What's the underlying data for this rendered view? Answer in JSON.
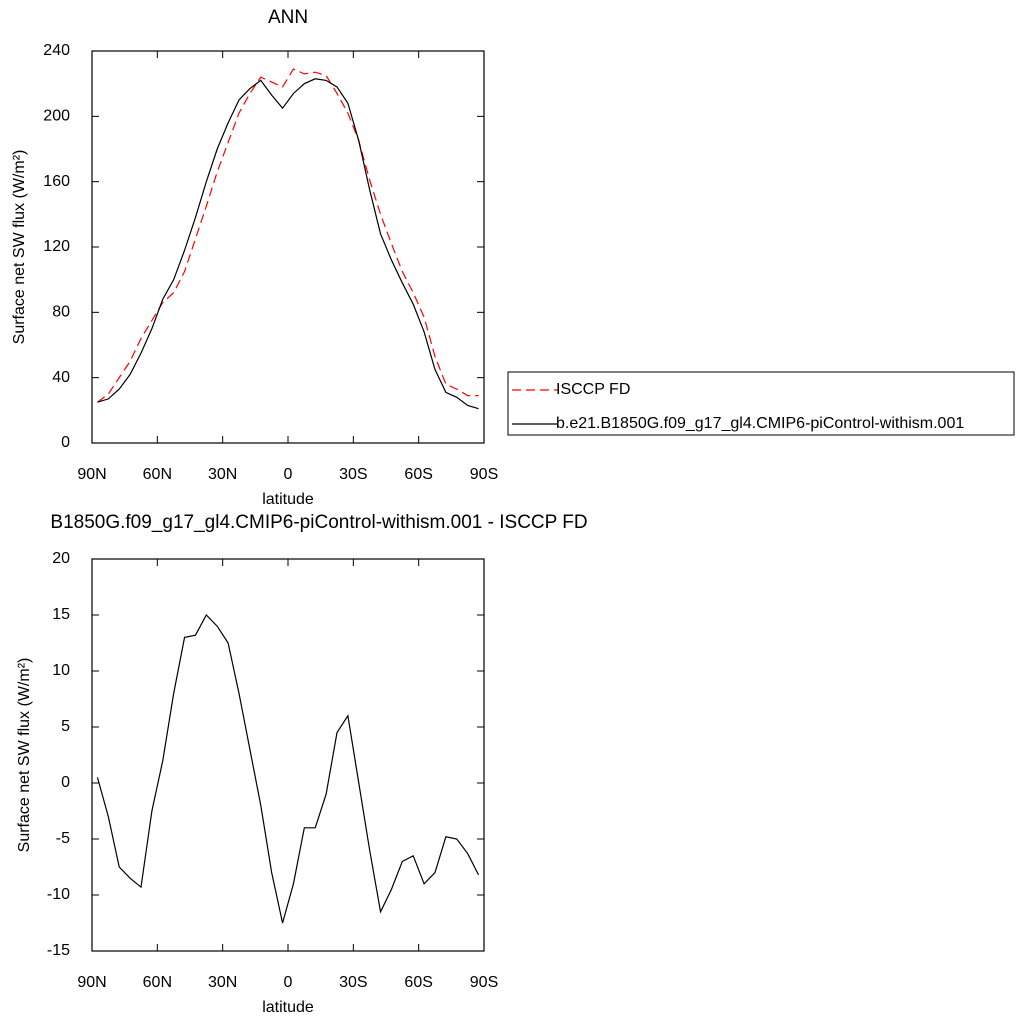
{
  "chart_data": [
    {
      "type": "line",
      "title": "ANN",
      "xlabel": "latitude",
      "ylabel": "Surface net SW flux (W/m²)",
      "x": [
        87.5,
        82.5,
        77.5,
        72.5,
        67.5,
        62.5,
        57.5,
        52.5,
        47.5,
        42.5,
        37.5,
        32.5,
        27.5,
        22.5,
        17.5,
        12.5,
        7.5,
        2.5,
        -2.5,
        -7.5,
        -12.5,
        -17.5,
        -22.5,
        -27.5,
        -32.5,
        -37.5,
        -42.5,
        -47.5,
        -52.5,
        -57.5,
        -62.5,
        -67.5,
        -72.5,
        -77.5,
        -82.5,
        -87.5
      ],
      "series": [
        {
          "name": "ISCCP FD",
          "color": "#ff0000",
          "dashed": true,
          "values": [
            25,
            30,
            40,
            50,
            64,
            75,
            86,
            92,
            105,
            125,
            145,
            166,
            184,
            202,
            214,
            224,
            221,
            218,
            229,
            226,
            227,
            225,
            214,
            202,
            185,
            161,
            140,
            122,
            105,
            92,
            77,
            53,
            36,
            33,
            29,
            29
          ]
        },
        {
          "name": "b.e21.B1850G.f09_g17_gl4.CMIP6-piControl-withism.001",
          "color": "#000000",
          "dashed": false,
          "values": [
            25,
            27,
            33,
            42,
            55,
            70,
            88,
            100,
            118,
            138,
            160,
            180,
            196,
            210,
            217,
            222,
            213,
            205,
            214,
            220,
            223,
            222,
            218,
            208,
            185,
            155,
            128,
            112,
            98,
            85,
            68,
            45,
            31,
            28,
            23,
            21
          ]
        }
      ],
      "xlim": [
        90,
        -90
      ],
      "xticks": [
        {
          "value": 90,
          "label": "90N"
        },
        {
          "value": 60,
          "label": "60N"
        },
        {
          "value": 30,
          "label": "30N"
        },
        0,
        {
          "value": -30,
          "label": "30S"
        },
        {
          "value": -60,
          "label": "60S"
        },
        {
          "value": -90,
          "label": "90S"
        }
      ],
      "ylim": [
        0,
        240
      ],
      "yticks": [
        0,
        40,
        80,
        120,
        160,
        200,
        240
      ],
      "legend": "right"
    },
    {
      "type": "line",
      "title": "B1850G.f09_g17_gl4.CMIP6-piControl-withism.001 - ISCCP FD",
      "xlabel": "latitude",
      "ylabel": "Surface net SW flux (W/m²)",
      "x": [
        87.5,
        82.5,
        77.5,
        72.5,
        67.5,
        62.5,
        57.5,
        52.5,
        47.5,
        42.5,
        37.5,
        32.5,
        27.5,
        22.5,
        17.5,
        12.5,
        7.5,
        2.5,
        -2.5,
        -7.5,
        -12.5,
        -17.5,
        -22.5,
        -27.5,
        -32.5,
        -37.5,
        -42.5,
        -47.5,
        -52.5,
        -57.5,
        -62.5,
        -67.5,
        -72.5,
        -77.5,
        -82.5,
        -87.5
      ],
      "series": [
        {
          "color": "#000000",
          "dashed": false,
          "values": [
            0.5,
            -3,
            -7.5,
            -8.5,
            -9.3,
            -2.5,
            2,
            8,
            13,
            13.2,
            15,
            14,
            12.5,
            8,
            3,
            -2,
            -8,
            -12.5,
            -9,
            -4,
            -4,
            -1,
            4.5,
            6,
            0,
            -6,
            -11.5,
            -9.5,
            -7,
            -6.5,
            -9,
            -8,
            -4.8,
            -5,
            -6.3,
            -8.2
          ]
        }
      ],
      "xlim": [
        90,
        -90
      ],
      "xticks": [
        {
          "value": 90,
          "label": "90N"
        },
        {
          "value": 60,
          "label": "60N"
        },
        {
          "value": 30,
          "label": "30N"
        },
        0,
        {
          "value": -30,
          "label": "30S"
        },
        {
          "value": -60,
          "label": "60S"
        },
        {
          "value": -90,
          "label": "90S"
        }
      ],
      "ylim": [
        -15,
        20
      ],
      "yticks": [
        -15,
        -10,
        -5,
        0,
        5,
        10,
        15,
        20
      ]
    }
  ]
}
